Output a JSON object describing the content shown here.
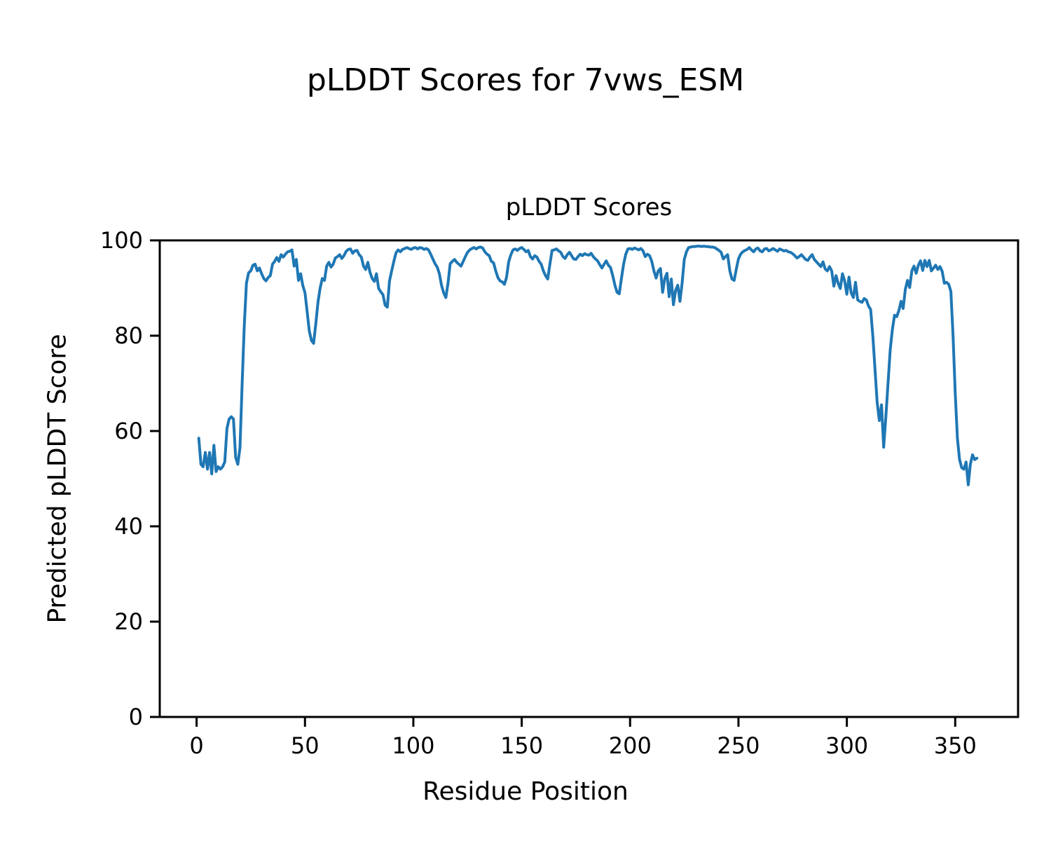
{
  "figure": {
    "title": "pLDDT Scores for 7vws_ESM"
  },
  "chart_data": {
    "type": "line",
    "title": "pLDDT Scores",
    "xlabel": "Residue Position",
    "ylabel": "Predicted pLDDT Score",
    "xlim": [
      -17,
      379
    ],
    "ylim": [
      0,
      100
    ],
    "xticks": [
      0,
      50,
      100,
      150,
      200,
      250,
      300,
      350
    ],
    "yticks": [
      0,
      20,
      40,
      60,
      80,
      100
    ],
    "grid": false,
    "legend": "none",
    "line_color": "#1f77b4",
    "axis_color": "#000000",
    "series": [
      {
        "name": "pLDDT",
        "x_start": 1,
        "x_step": 1,
        "values": [
          58.5,
          53.0,
          52.5,
          55.5,
          52.0,
          55.5,
          51.0,
          57.0,
          51.5,
          52.5,
          52.0,
          52.5,
          53.5,
          60.5,
          62.5,
          63.0,
          62.5,
          54.5,
          53.0,
          56.5,
          70.0,
          82.0,
          91.0,
          93.2,
          93.6,
          94.8,
          95.0,
          93.6,
          94.2,
          93.0,
          92.0,
          91.5,
          92.2,
          92.6,
          95.0,
          95.6,
          96.4,
          95.6,
          97.0,
          96.5,
          97.1,
          97.6,
          97.7,
          98.0,
          94.6,
          96.0,
          91.6,
          93.0,
          90.5,
          89.0,
          85.0,
          81.0,
          79.0,
          78.4,
          82.5,
          87.0,
          90.0,
          92.0,
          91.6,
          94.6,
          95.4,
          94.4,
          95.0,
          96.3,
          96.6,
          97.0,
          96.2,
          96.8,
          97.7,
          98.1,
          98.2,
          97.3,
          97.8,
          97.9,
          97.0,
          96.5,
          94.6,
          93.9,
          95.4,
          93.3,
          92.0,
          91.4,
          93.0,
          89.9,
          89.2,
          88.6,
          86.4,
          86.0,
          91.5,
          93.6,
          95.6,
          97.4,
          98.0,
          97.6,
          98.1,
          98.3,
          98.5,
          98.3,
          98.1,
          98.4,
          98.5,
          98.2,
          98.5,
          98.4,
          98.1,
          98.3,
          98.0,
          97.1,
          96.1,
          95.1,
          94.4,
          93.0,
          90.6,
          89.0,
          88.0,
          91.0,
          95.1,
          95.6,
          96.0,
          95.4,
          95.0,
          94.6,
          95.6,
          96.6,
          97.5,
          98.0,
          98.3,
          98.5,
          98.2,
          98.5,
          98.6,
          98.4,
          97.6,
          97.1,
          96.8,
          95.6,
          95.3,
          93.6,
          92.2,
          91.5,
          91.3,
          90.8,
          92.2,
          95.5,
          97.0,
          98.0,
          98.2,
          97.9,
          98.3,
          98.5,
          98.1,
          97.6,
          97.9,
          96.6,
          96.1,
          96.8,
          96.5,
          95.6,
          95.0,
          93.6,
          92.6,
          91.9,
          95.0,
          97.9,
          98.0,
          98.2,
          97.8,
          97.5,
          96.6,
          96.2,
          97.0,
          97.5,
          96.8,
          96.1,
          96.0,
          96.6,
          97.1,
          96.8,
          97.2,
          97.0,
          96.9,
          97.3,
          96.6,
          96.1,
          95.7,
          94.9,
          94.2,
          95.0,
          95.7,
          94.8,
          94.3,
          92.6,
          90.6,
          89.1,
          88.8,
          92.0,
          95.0,
          97.1,
          98.2,
          98.3,
          98.1,
          98.4,
          98.2,
          98.0,
          98.3,
          97.8,
          96.6,
          97.1,
          96.8,
          95.6,
          93.6,
          92.1,
          93.6,
          94.1,
          89.1,
          92.0,
          93.1,
          88.2,
          91.9,
          86.5,
          89.5,
          90.6,
          87.2,
          91.0,
          96.0,
          97.6,
          98.5,
          98.6,
          98.7,
          98.7,
          98.8,
          98.8,
          98.7,
          98.8,
          98.7,
          98.7,
          98.6,
          98.6,
          98.5,
          98.2,
          97.9,
          97.5,
          96.1,
          96.6,
          97.0,
          93.6,
          91.9,
          91.6,
          94.0,
          96.1,
          97.1,
          97.6,
          97.9,
          98.1,
          98.5,
          98.0,
          97.6,
          98.2,
          98.4,
          97.8,
          97.6,
          98.2,
          98.3,
          97.8,
          98.0,
          98.3,
          98.0,
          97.7,
          98.2,
          98.0,
          97.8,
          97.9,
          97.6,
          97.5,
          97.2,
          96.8,
          96.3,
          96.6,
          97.0,
          96.5,
          96.0,
          95.8,
          96.5,
          97.0,
          96.0,
          95.5,
          95.0,
          94.5,
          95.5,
          94.0,
          93.6,
          94.5,
          93.6,
          90.4,
          92.6,
          91.0,
          89.9,
          93.0,
          91.5,
          88.7,
          92.3,
          89.0,
          88.0,
          91.2,
          87.5,
          87.2,
          87.0,
          87.8,
          87.5,
          86.2,
          85.5,
          80.0,
          73.0,
          66.0,
          62.2,
          65.5,
          56.6,
          63.0,
          70.0,
          77.0,
          81.3,
          84.3,
          84.0,
          85.3,
          87.2,
          85.7,
          89.7,
          91.6,
          90.1,
          93.6,
          94.6,
          93.1,
          94.8,
          95.7,
          93.7,
          95.8,
          94.5,
          95.8,
          93.6,
          94.2,
          94.8,
          93.9,
          94.5,
          93.5,
          91.0,
          91.2,
          90.8,
          89.3,
          80.0,
          68.0,
          58.5,
          54.0,
          52.3,
          52.0,
          53.5,
          48.7,
          53.0,
          55.0,
          54.0,
          54.3
        ]
      }
    ]
  }
}
